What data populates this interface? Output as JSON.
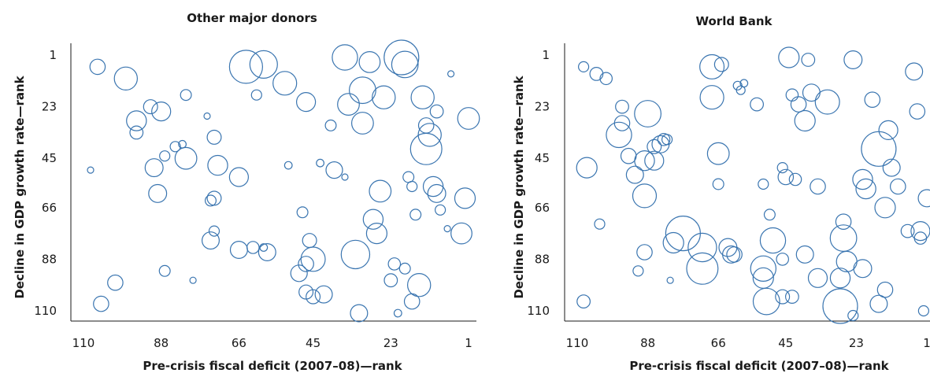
{
  "chart_data": [
    {
      "type": "scatter",
      "title": "Other major donors",
      "xlabel": "Pre-crisis fiscal deficit (2007–08)—rank",
      "ylabel": "Decline in GDP growth rate—rank",
      "xlim": [
        110,
        1
      ],
      "ylim": [
        1,
        110
      ],
      "x_reversed": true,
      "y_reversed": true,
      "xticks": [
        "110",
        "88",
        "66",
        "45",
        "23",
        "1"
      ],
      "yticks": [
        "1",
        "23",
        "45",
        "66",
        "88",
        "110"
      ],
      "grid": false,
      "color": "#3a75b0",
      "points": [
        {
          "x": 106,
          "y": 6,
          "s": 0.15
        },
        {
          "x": 98,
          "y": 11,
          "s": 0.4
        },
        {
          "x": 91,
          "y": 23,
          "s": 0.12
        },
        {
          "x": 88,
          "y": 25,
          "s": 0.25
        },
        {
          "x": 95,
          "y": 29,
          "s": 0.28
        },
        {
          "x": 95,
          "y": 34,
          "s": 0.1
        },
        {
          "x": 81,
          "y": 18,
          "s": 0.06
        },
        {
          "x": 75,
          "y": 27,
          "s": 0.01
        },
        {
          "x": 73,
          "y": 36,
          "s": 0.12
        },
        {
          "x": 84,
          "y": 40,
          "s": 0.05
        },
        {
          "x": 82,
          "y": 39,
          "s": 0.02
        },
        {
          "x": 87,
          "y": 44,
          "s": 0.05
        },
        {
          "x": 81,
          "y": 45,
          "s": 0.35
        },
        {
          "x": 90,
          "y": 49,
          "s": 0.22
        },
        {
          "x": 72,
          "y": 48,
          "s": 0.28
        },
        {
          "x": 108,
          "y": 50,
          "s": 0.01
        },
        {
          "x": 66,
          "y": 53,
          "s": 0.25
        },
        {
          "x": 89,
          "y": 60,
          "s": 0.22
        },
        {
          "x": 73,
          "y": 62,
          "s": 0.12
        },
        {
          "x": 74,
          "y": 63,
          "s": 0.06
        },
        {
          "x": 64,
          "y": 6,
          "s": 0.9
        },
        {
          "x": 59,
          "y": 5,
          "s": 0.6
        },
        {
          "x": 53,
          "y": 13,
          "s": 0.42
        },
        {
          "x": 47,
          "y": 21,
          "s": 0.25
        },
        {
          "x": 61,
          "y": 18,
          "s": 0.05
        },
        {
          "x": 36,
          "y": 2,
          "s": 0.5
        },
        {
          "x": 29,
          "y": 4,
          "s": 0.32
        },
        {
          "x": 20,
          "y": 2,
          "s": 1.0
        },
        {
          "x": 19,
          "y": 5,
          "s": 0.55
        },
        {
          "x": 31,
          "y": 16,
          "s": 0.55
        },
        {
          "x": 35,
          "y": 22,
          "s": 0.35
        },
        {
          "x": 25,
          "y": 19,
          "s": 0.4
        },
        {
          "x": 31,
          "y": 30,
          "s": 0.35
        },
        {
          "x": 40,
          "y": 31,
          "s": 0.06
        },
        {
          "x": 6,
          "y": 9,
          "s": 0.01
        },
        {
          "x": 14,
          "y": 19,
          "s": 0.4
        },
        {
          "x": 10,
          "y": 25,
          "s": 0.1
        },
        {
          "x": 1,
          "y": 28,
          "s": 0.35
        },
        {
          "x": 13,
          "y": 31,
          "s": 0.15
        },
        {
          "x": 12,
          "y": 35,
          "s": 0.4
        },
        {
          "x": 13,
          "y": 41,
          "s": 0.8
        },
        {
          "x": 43,
          "y": 47,
          "s": 0.02
        },
        {
          "x": 52,
          "y": 48,
          "s": 0.02
        },
        {
          "x": 39,
          "y": 50,
          "s": 0.18
        },
        {
          "x": 36,
          "y": 53,
          "s": 0.01
        },
        {
          "x": 18,
          "y": 53,
          "s": 0.06
        },
        {
          "x": 26,
          "y": 59,
          "s": 0.35
        },
        {
          "x": 17,
          "y": 57,
          "s": 0.05
        },
        {
          "x": 11,
          "y": 57,
          "s": 0.28
        },
        {
          "x": 10,
          "y": 60,
          "s": 0.22
        },
        {
          "x": 2,
          "y": 62,
          "s": 0.3
        },
        {
          "x": 48,
          "y": 68,
          "s": 0.06
        },
        {
          "x": 16,
          "y": 69,
          "s": 0.06
        },
        {
          "x": 9,
          "y": 67,
          "s": 0.05
        },
        {
          "x": 7,
          "y": 75,
          "s": 0.01
        },
        {
          "x": 28,
          "y": 71,
          "s": 0.28
        },
        {
          "x": 27,
          "y": 77,
          "s": 0.3
        },
        {
          "x": 3,
          "y": 77,
          "s": 0.32
        },
        {
          "x": 73,
          "y": 76,
          "s": 0.05
        },
        {
          "x": 74,
          "y": 80,
          "s": 0.2
        },
        {
          "x": 66,
          "y": 84,
          "s": 0.2
        },
        {
          "x": 62,
          "y": 83,
          "s": 0.08
        },
        {
          "x": 59,
          "y": 83,
          "s": 0.02
        },
        {
          "x": 58,
          "y": 85,
          "s": 0.2
        },
        {
          "x": 46,
          "y": 80,
          "s": 0.12
        },
        {
          "x": 45,
          "y": 88,
          "s": 0.45
        },
        {
          "x": 47,
          "y": 90,
          "s": 0.15
        },
        {
          "x": 49,
          "y": 94,
          "s": 0.18
        },
        {
          "x": 33,
          "y": 86,
          "s": 0.65
        },
        {
          "x": 22,
          "y": 90,
          "s": 0.08
        },
        {
          "x": 19,
          "y": 92,
          "s": 0.06
        },
        {
          "x": 87,
          "y": 93,
          "s": 0.06
        },
        {
          "x": 79,
          "y": 97,
          "s": 0.01
        },
        {
          "x": 101,
          "y": 98,
          "s": 0.15
        },
        {
          "x": 105,
          "y": 107,
          "s": 0.15
        },
        {
          "x": 47,
          "y": 102,
          "s": 0.12
        },
        {
          "x": 45,
          "y": 104,
          "s": 0.12
        },
        {
          "x": 42,
          "y": 103,
          "s": 0.2
        },
        {
          "x": 23,
          "y": 97,
          "s": 0.1
        },
        {
          "x": 15,
          "y": 99,
          "s": 0.4
        },
        {
          "x": 17,
          "y": 106,
          "s": 0.15
        },
        {
          "x": 21,
          "y": 111,
          "s": 0.02
        },
        {
          "x": 32,
          "y": 111,
          "s": 0.2
        }
      ]
    },
    {
      "type": "scatter",
      "title": "World Bank",
      "xlabel": "Pre-crisis fiscal deficit (2007–08)—rank",
      "ylabel": "Decline in GDP growth rate—rank",
      "xlim": [
        110,
        1
      ],
      "ylim": [
        1,
        110
      ],
      "x_reversed": true,
      "y_reversed": true,
      "xticks": [
        "110",
        "88",
        "66",
        "45",
        "23",
        "1"
      ],
      "yticks": [
        "1",
        "23",
        "45",
        "66",
        "88",
        "110"
      ],
      "grid": false,
      "color": "#3a75b0",
      "points": [
        {
          "x": 108,
          "y": 6,
          "s": 0.05
        },
        {
          "x": 104,
          "y": 9,
          "s": 0.1
        },
        {
          "x": 101,
          "y": 11,
          "s": 0.08
        },
        {
          "x": 96,
          "y": 23,
          "s": 0.1
        },
        {
          "x": 88,
          "y": 26,
          "s": 0.55
        },
        {
          "x": 96,
          "y": 30,
          "s": 0.15
        },
        {
          "x": 97,
          "y": 35,
          "s": 0.5
        },
        {
          "x": 83,
          "y": 37,
          "s": 0.08
        },
        {
          "x": 86,
          "y": 40,
          "s": 0.12
        },
        {
          "x": 84,
          "y": 39,
          "s": 0.2
        },
        {
          "x": 82,
          "y": 37,
          "s": 0.05
        },
        {
          "x": 94,
          "y": 44,
          "s": 0.15
        },
        {
          "x": 89,
          "y": 46,
          "s": 0.28
        },
        {
          "x": 86,
          "y": 46,
          "s": 0.25
        },
        {
          "x": 107,
          "y": 49,
          "s": 0.3
        },
        {
          "x": 92,
          "y": 52,
          "s": 0.2
        },
        {
          "x": 89,
          "y": 61,
          "s": 0.42
        },
        {
          "x": 103,
          "y": 73,
          "s": 0.05
        },
        {
          "x": 68,
          "y": 6,
          "s": 0.45
        },
        {
          "x": 65,
          "y": 5,
          "s": 0.12
        },
        {
          "x": 68,
          "y": 19,
          "s": 0.42
        },
        {
          "x": 60,
          "y": 14,
          "s": 0.03
        },
        {
          "x": 59,
          "y": 16,
          "s": 0.03
        },
        {
          "x": 58,
          "y": 13,
          "s": 0.02
        },
        {
          "x": 54,
          "y": 22,
          "s": 0.1
        },
        {
          "x": 44,
          "y": 2,
          "s": 0.3
        },
        {
          "x": 38,
          "y": 3,
          "s": 0.1
        },
        {
          "x": 24,
          "y": 3,
          "s": 0.22
        },
        {
          "x": 43,
          "y": 18,
          "s": 0.08
        },
        {
          "x": 41,
          "y": 22,
          "s": 0.15
        },
        {
          "x": 37,
          "y": 17,
          "s": 0.2
        },
        {
          "x": 32,
          "y": 21,
          "s": 0.45
        },
        {
          "x": 39,
          "y": 29,
          "s": 0.3
        },
        {
          "x": 18,
          "y": 20,
          "s": 0.15
        },
        {
          "x": 5,
          "y": 8,
          "s": 0.2
        },
        {
          "x": 4,
          "y": 25,
          "s": 0.15
        },
        {
          "x": 13,
          "y": 33,
          "s": 0.25
        },
        {
          "x": 16,
          "y": 41,
          "s": 1.0
        },
        {
          "x": 66,
          "y": 43,
          "s": 0.35
        },
        {
          "x": 46,
          "y": 49,
          "s": 0.05
        },
        {
          "x": 45,
          "y": 53,
          "s": 0.15
        },
        {
          "x": 42,
          "y": 54,
          "s": 0.08
        },
        {
          "x": 21,
          "y": 54,
          "s": 0.28
        },
        {
          "x": 20,
          "y": 58,
          "s": 0.28
        },
        {
          "x": 12,
          "y": 49,
          "s": 0.2
        },
        {
          "x": 10,
          "y": 57,
          "s": 0.15
        },
        {
          "x": 66,
          "y": 56,
          "s": 0.06
        },
        {
          "x": 52,
          "y": 56,
          "s": 0.05
        },
        {
          "x": 35,
          "y": 57,
          "s": 0.15
        },
        {
          "x": 14,
          "y": 66,
          "s": 0.3
        },
        {
          "x": 1,
          "y": 62,
          "s": 0.2
        },
        {
          "x": 50,
          "y": 69,
          "s": 0.06
        },
        {
          "x": 27,
          "y": 72,
          "s": 0.15
        },
        {
          "x": 27,
          "y": 79,
          "s": 0.55
        },
        {
          "x": 7,
          "y": 76,
          "s": 0.1
        },
        {
          "x": 3,
          "y": 76,
          "s": 0.25
        },
        {
          "x": 3,
          "y": 79,
          "s": 0.08
        },
        {
          "x": 77,
          "y": 77,
          "s": 1.0
        },
        {
          "x": 80,
          "y": 81,
          "s": 0.3
        },
        {
          "x": 71,
          "y": 83,
          "s": 0.65
        },
        {
          "x": 63,
          "y": 83,
          "s": 0.22
        },
        {
          "x": 62,
          "y": 86,
          "s": 0.2
        },
        {
          "x": 61,
          "y": 86,
          "s": 0.15
        },
        {
          "x": 49,
          "y": 80,
          "s": 0.5
        },
        {
          "x": 89,
          "y": 85,
          "s": 0.15
        },
        {
          "x": 71,
          "y": 92,
          "s": 0.8
        },
        {
          "x": 52,
          "y": 92,
          "s": 0.5
        },
        {
          "x": 52,
          "y": 96,
          "s": 0.3
        },
        {
          "x": 46,
          "y": 88,
          "s": 0.08
        },
        {
          "x": 39,
          "y": 86,
          "s": 0.2
        },
        {
          "x": 26,
          "y": 89,
          "s": 0.3
        },
        {
          "x": 21,
          "y": 92,
          "s": 0.22
        },
        {
          "x": 91,
          "y": 93,
          "s": 0.05
        },
        {
          "x": 81,
          "y": 97,
          "s": 0.01
        },
        {
          "x": 35,
          "y": 96,
          "s": 0.25
        },
        {
          "x": 28,
          "y": 96,
          "s": 0.28
        },
        {
          "x": 108,
          "y": 106,
          "s": 0.1
        },
        {
          "x": 51,
          "y": 106,
          "s": 0.55
        },
        {
          "x": 43,
          "y": 104,
          "s": 0.1
        },
        {
          "x": 46,
          "y": 104,
          "s": 0.12
        },
        {
          "x": 28,
          "y": 108,
          "s": 1.0
        },
        {
          "x": 14,
          "y": 101,
          "s": 0.15
        },
        {
          "x": 16,
          "y": 107,
          "s": 0.2
        },
        {
          "x": 24,
          "y": 112,
          "s": 0.05
        },
        {
          "x": 2,
          "y": 110,
          "s": 0.05
        }
      ]
    }
  ]
}
